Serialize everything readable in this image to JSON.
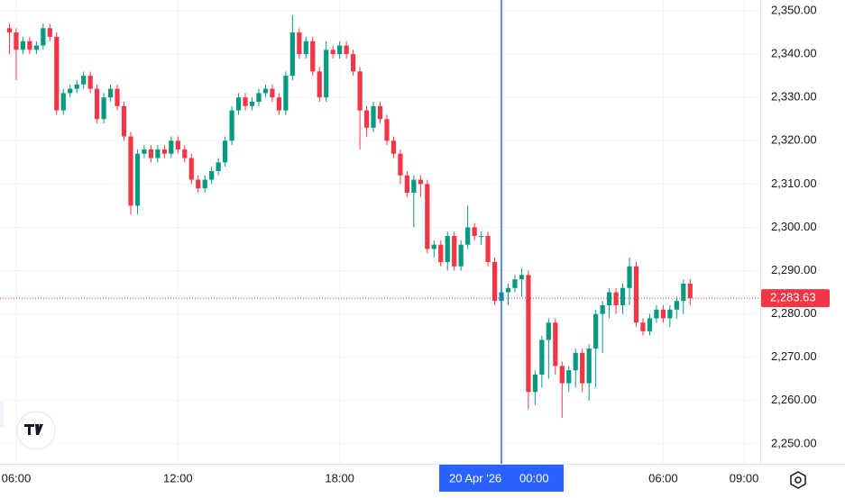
{
  "chart_data": {
    "type": "candlestick",
    "x": [
      5.75,
      6,
      6.25,
      6.5,
      6.75,
      7,
      7.25,
      7.5,
      7.75,
      8,
      8.25,
      8.5,
      8.75,
      9,
      9.25,
      9.5,
      9.75,
      10,
      10.25,
      10.5,
      10.75,
      11,
      11.25,
      11.5,
      11.75,
      12,
      12.25,
      12.5,
      12.75,
      13,
      13.25,
      13.5,
      13.75,
      14,
      14.25,
      14.5,
      14.75,
      15,
      15.25,
      15.5,
      15.75,
      16,
      16.25,
      16.5,
      16.75,
      17,
      17.25,
      17.5,
      17.75,
      18,
      18.25,
      18.5,
      18.75,
      19,
      19.25,
      19.5,
      19.75,
      20,
      20.25,
      20.5,
      20.75,
      21,
      21.25,
      21.5,
      21.75,
      22,
      22.25,
      22.5,
      22.75,
      23,
      23.25,
      23.5,
      23.75,
      24,
      24.25,
      24.5,
      24.75,
      25,
      25.25,
      25.5,
      25.75,
      26,
      26.25,
      26.5,
      26.75,
      27,
      27.25,
      27.5,
      27.75,
      28,
      28.25,
      28.5,
      28.75,
      29,
      29.25,
      29.5,
      29.75,
      30,
      30.25,
      30.5,
      30.75,
      31
    ],
    "open": [
      2346,
      2345,
      2341,
      2343,
      2341,
      2342,
      2346,
      2344,
      2327,
      2331,
      2332,
      2333,
      2335,
      2332,
      2325,
      2330,
      2332,
      2328,
      2321,
      2305,
      2317,
      2318,
      2316,
      2318,
      2317,
      2320,
      2318,
      2316,
      2311,
      2309,
      2311,
      2313,
      2315,
      2320,
      2327,
      2330,
      2328,
      2329,
      2331,
      2332,
      2330,
      2327,
      2335,
      2345,
      2340,
      2343,
      2336,
      2330,
      2341,
      2340,
      2342,
      2340,
      2336,
      2327,
      2323,
      2328,
      2325,
      2320,
      2317,
      2312,
      2308,
      2311,
      2310,
      2295,
      2296,
      2292,
      2298,
      2291,
      2296,
      2300,
      2298,
      2298,
      2292,
      2283,
      2285,
      2286,
      2288,
      2289,
      2262,
      2266,
      2274,
      2278,
      2268,
      2264,
      2267,
      2271,
      2264,
      2272,
      2280,
      2282,
      2285,
      2282,
      2286,
      2291,
      2278,
      2276,
      2279,
      2281,
      2279,
      2281,
      2283,
      2287
    ],
    "high": [
      2347,
      2346,
      2344,
      2344,
      2343,
      2347,
      2347,
      2345,
      2332,
      2333,
      2334,
      2336,
      2336,
      2333,
      2331,
      2333,
      2333,
      2329,
      2322,
      2318,
      2319,
      2319,
      2319,
      2319,
      2321,
      2321,
      2319,
      2317,
      2312,
      2312,
      2314,
      2316,
      2321,
      2328,
      2331,
      2331,
      2330,
      2332,
      2333,
      2333,
      2331,
      2336,
      2349,
      2346,
      2344,
      2344,
      2337,
      2343,
      2342,
      2343,
      2343,
      2341,
      2337,
      2328,
      2329,
      2329,
      2326,
      2321,
      2318,
      2313,
      2312,
      2312,
      2311,
      2297,
      2297,
      2299,
      2299,
      2297,
      2305,
      2301,
      2299,
      2299,
      2293,
      2286,
      2287,
      2289,
      2290.5,
      2290,
      2267,
      2275,
      2279,
      2279,
      2269,
      2268,
      2272,
      2272,
      2273,
      2281,
      2283,
      2286,
      2286,
      2287,
      2293,
      2292,
      2279,
      2280,
      2282,
      2282,
      2282,
      2284,
      2288,
      2288
    ],
    "low": [
      2340,
      2334,
      2340,
      2340,
      2340,
      2341,
      2343,
      2326,
      2326,
      2330,
      2331,
      2332,
      2331,
      2324,
      2324,
      2329,
      2327,
      2320,
      2303,
      2303,
      2316,
      2315,
      2315,
      2316,
      2316,
      2317,
      2315,
      2310,
      2308,
      2308,
      2310,
      2312,
      2314,
      2319,
      2326,
      2327,
      2327,
      2328,
      2330,
      2329,
      2326,
      2326,
      2334,
      2339,
      2339,
      2335,
      2329,
      2329,
      2339,
      2339,
      2339,
      2335,
      2318,
      2321,
      2322,
      2324,
      2319,
      2316,
      2310,
      2307,
      2300,
      2307,
      2294,
      2293,
      2291,
      2290,
      2290,
      2290,
      2295,
      2297,
      2296,
      2291,
      2282,
      2278,
      2282,
      2285,
      2284,
      2258,
      2259,
      2263,
      2265,
      2266,
      2256,
      2262,
      2263,
      2262,
      2260,
      2263,
      2271,
      2279,
      2280,
      2280,
      2282,
      2277,
      2275,
      2275,
      2278,
      2278,
      2277,
      2279,
      2280,
      2282
    ],
    "close": [
      2345,
      2341,
      2343,
      2341,
      2342,
      2346,
      2344,
      2327,
      2331,
      2332,
      2333,
      2335,
      2332,
      2325,
      2330,
      2332,
      2328,
      2321,
      2305,
      2317,
      2318,
      2316,
      2318,
      2317,
      2320,
      2318,
      2316,
      2311,
      2309,
      2311,
      2313,
      2315,
      2320,
      2327,
      2330,
      2328,
      2329,
      2331,
      2332,
      2330,
      2327,
      2335,
      2345,
      2340,
      2343,
      2336,
      2330,
      2341,
      2340,
      2342,
      2340,
      2336,
      2327,
      2323,
      2328,
      2325,
      2320,
      2317,
      2312,
      2308,
      2311,
      2310,
      2295,
      2296,
      2292,
      2298,
      2291,
      2296,
      2300,
      2298,
      2298,
      2292,
      2283,
      2285,
      2286,
      2288,
      2289,
      2262,
      2266,
      2274,
      2278,
      2268,
      2264,
      2267,
      2271,
      2264,
      2272,
      2280,
      2282,
      2285,
      2282,
      2286,
      2291,
      2278,
      2276,
      2279,
      2281,
      2279,
      2281,
      2283,
      2287,
      2283.63
    ],
    "up_color": "#089981",
    "down_color": "#f23645",
    "xlim": [
      5.4,
      33.6
    ],
    "xticks": [
      {
        "value": 6,
        "label": "06:00"
      },
      {
        "value": 12,
        "label": "12:00"
      },
      {
        "value": 18,
        "label": "18:00"
      },
      {
        "value": 24,
        "label": "00:00"
      },
      {
        "value": 30,
        "label": "06:00"
      },
      {
        "value": 33,
        "label": "09:00"
      }
    ],
    "ylim": [
      2245.4,
      2352.5
    ],
    "yticks": [
      {
        "value": 2250,
        "label": "2,250.00"
      },
      {
        "value": 2260,
        "label": "2,260.00"
      },
      {
        "value": 2270,
        "label": "2,270.00"
      },
      {
        "value": 2280,
        "label": "2,280.00"
      },
      {
        "value": 2290,
        "label": "2,290.00"
      },
      {
        "value": 2300,
        "label": "2,300.00"
      },
      {
        "value": 2310,
        "label": "2,310.00"
      },
      {
        "value": 2320,
        "label": "2,320.00"
      },
      {
        "value": 2330,
        "label": "2,330.00"
      },
      {
        "value": 2340,
        "label": "2,340.00"
      },
      {
        "value": 2350,
        "label": "2,350.00"
      }
    ],
    "grid": true,
    "last_price": {
      "value": 2283.63,
      "label": "2,283.63"
    },
    "crosshair": {
      "x": 24,
      "date": "20 Apr '26",
      "time": "00:00",
      "color": "#2962ff"
    }
  }
}
